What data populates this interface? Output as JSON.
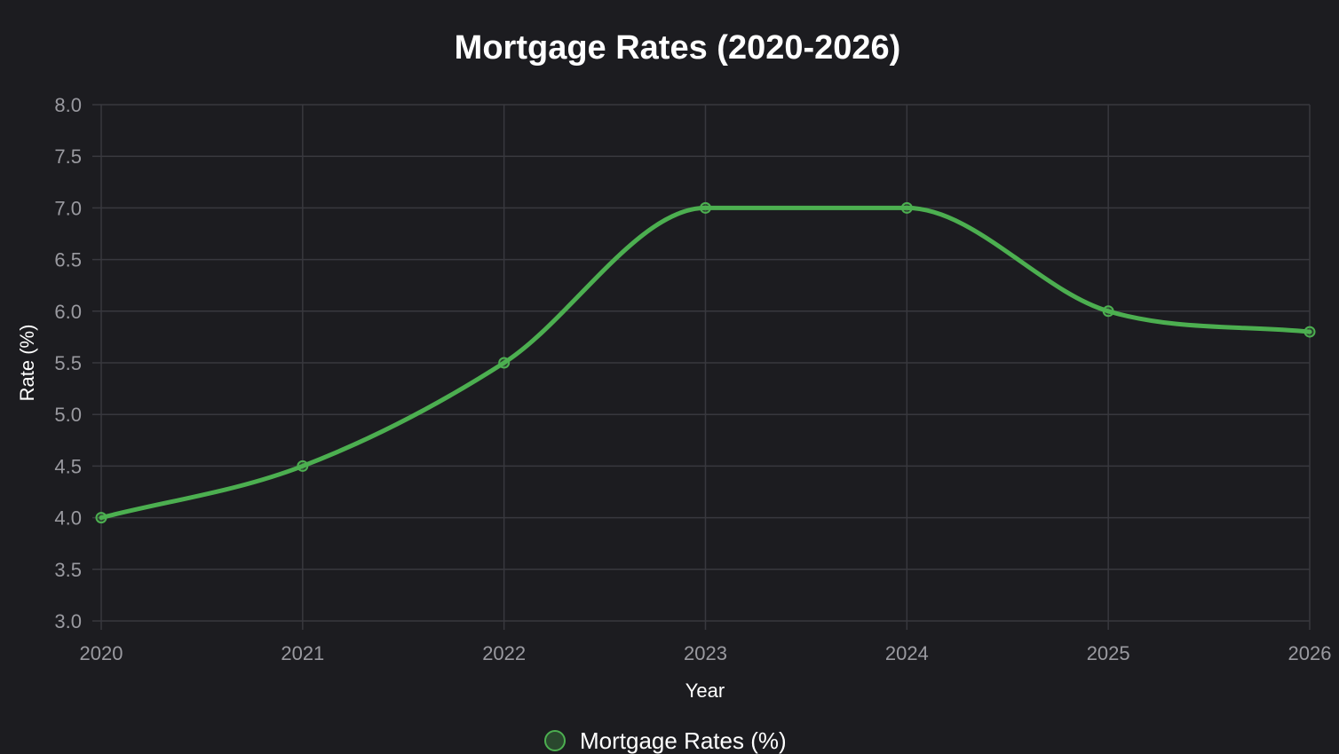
{
  "chart_data": {
    "type": "line",
    "title": "Mortgage Rates (2020-2026)",
    "xlabel": "Year",
    "ylabel": "Rate (%)",
    "categories": [
      "2020",
      "2021",
      "2022",
      "2023",
      "2024",
      "2025",
      "2026"
    ],
    "series": [
      {
        "name": "Mortgage Rates (%)",
        "values": [
          4.0,
          4.5,
          5.5,
          7.0,
          7.0,
          6.0,
          5.8
        ],
        "color": "#4caf50"
      }
    ],
    "ylim": [
      3.0,
      8.0
    ],
    "yticks": [
      "3.0",
      "3.5",
      "4.0",
      "4.5",
      "5.0",
      "5.5",
      "6.0",
      "6.5",
      "7.0",
      "7.5",
      "8.0"
    ],
    "grid": true,
    "legend_position": "bottom",
    "smooth": true
  }
}
